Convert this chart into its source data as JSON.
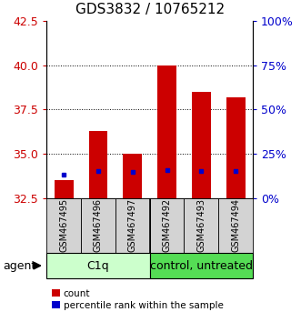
{
  "title": "GDS3832 / 10765212",
  "samples": [
    "GSM467495",
    "GSM467496",
    "GSM467497",
    "GSM467492",
    "GSM467493",
    "GSM467494"
  ],
  "red_bar_bottom": 32.5,
  "red_bar_top": [
    33.5,
    36.3,
    35.0,
    40.0,
    38.5,
    38.2
  ],
  "blue_marker": [
    33.8,
    34.05,
    33.95,
    34.1,
    34.05,
    34.05
  ],
  "ylim": [
    32.5,
    42.5
  ],
  "y_left_ticks": [
    32.5,
    35.0,
    37.5,
    40.0,
    42.5
  ],
  "y_right_ticks": [
    0,
    25,
    50,
    75,
    100
  ],
  "left_color": "#cc0000",
  "right_color": "#0000cc",
  "bar_color": "#cc0000",
  "blue_color": "#0000cc",
  "group1_label": "C1q",
  "group2_label": "control, untreated",
  "group1_bg": "#ccffcc",
  "group2_bg": "#55dd55",
  "agent_label": "agent",
  "legend_count": "count",
  "legend_percentile": "percentile rank within the sample",
  "bar_width": 0.55,
  "title_fontsize": 11,
  "sample_fontsize": 7,
  "group_fontsize": 9,
  "tick_fontsize": 9
}
